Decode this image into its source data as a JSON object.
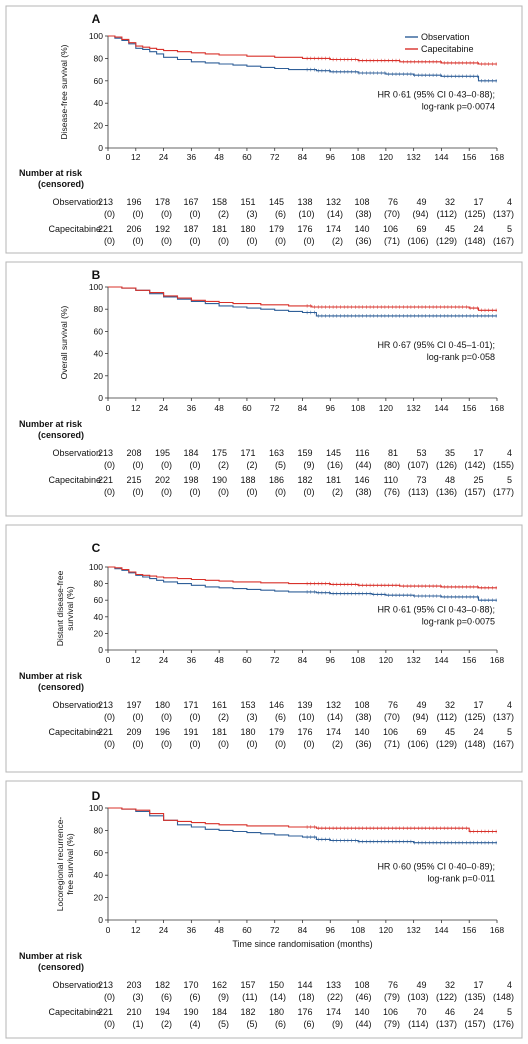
{
  "x_axis_label": "Time since randomisation (months)",
  "risk_heading": [
    "Number at risk",
    "(censored)"
  ],
  "series_colors": {
    "Observation": "#2f5f98",
    "Capecitabine": "#d8312a"
  },
  "chart_data": [
    {
      "type": "line",
      "panel": "A",
      "ylabel": [
        "Disease-free survival (%)"
      ],
      "xlim": [
        0,
        168
      ],
      "ylim": [
        0,
        100
      ],
      "xticks": [
        0,
        12,
        24,
        36,
        48,
        60,
        72,
        84,
        96,
        108,
        120,
        132,
        144,
        156,
        168
      ],
      "yticks": [
        0,
        20,
        40,
        60,
        80,
        100
      ],
      "legend": "top-right",
      "annotation": [
        "HR 0·61 (95% CI 0·43–0·88);",
        "log-rank p=0·0074"
      ],
      "series": [
        {
          "name": "Observation",
          "x": [
            0,
            3,
            6,
            9,
            12,
            15,
            18,
            21,
            24,
            30,
            36,
            42,
            48,
            54,
            60,
            66,
            72,
            78,
            84,
            90,
            96,
            102,
            108,
            114,
            120,
            126,
            132,
            138,
            144,
            150,
            156,
            160,
            168
          ],
          "y": [
            100,
            98,
            96,
            93,
            89,
            88,
            86,
            84,
            81,
            79,
            77,
            76,
            75,
            74,
            73,
            72,
            71,
            70,
            70,
            69,
            68,
            68,
            67,
            67,
            66,
            66,
            65,
            65,
            64,
            64,
            64,
            60,
            60
          ]
        },
        {
          "name": "Capecitabine",
          "x": [
            0,
            3,
            6,
            9,
            12,
            15,
            18,
            21,
            24,
            30,
            36,
            42,
            48,
            54,
            60,
            66,
            72,
            78,
            84,
            90,
            96,
            102,
            108,
            114,
            120,
            126,
            132,
            138,
            144,
            150,
            156,
            160,
            168
          ],
          "y": [
            100,
            99,
            97,
            94,
            91,
            90,
            89,
            88,
            87,
            86,
            85,
            84,
            83,
            83,
            82,
            82,
            81,
            81,
            80,
            80,
            79,
            79,
            78,
            78,
            78,
            77,
            77,
            77,
            76,
            76,
            76,
            75,
            75
          ]
        }
      ],
      "at_risk": {
        "Observation": {
          "n": [
            213,
            196,
            178,
            167,
            158,
            151,
            145,
            138,
            132,
            108,
            76,
            49,
            32,
            17,
            4
          ],
          "censored": [
            0,
            0,
            0,
            0,
            2,
            3,
            6,
            10,
            14,
            38,
            70,
            94,
            112,
            125,
            137
          ]
        },
        "Capecitabine": {
          "n": [
            221,
            206,
            192,
            187,
            181,
            180,
            179,
            176,
            174,
            140,
            106,
            69,
            45,
            24,
            5
          ],
          "censored": [
            0,
            0,
            0,
            0,
            0,
            0,
            0,
            0,
            2,
            36,
            71,
            106,
            129,
            148,
            167
          ]
        }
      }
    },
    {
      "type": "line",
      "panel": "B",
      "ylabel": [
        "Overall survival (%)"
      ],
      "xlim": [
        0,
        168
      ],
      "ylim": [
        0,
        100
      ],
      "xticks": [
        0,
        12,
        24,
        36,
        48,
        60,
        72,
        84,
        96,
        108,
        120,
        132,
        144,
        156,
        168
      ],
      "yticks": [
        0,
        20,
        40,
        60,
        80,
        100
      ],
      "annotation": [
        "HR 0·67 (95% CI 0·45–1·01);",
        "log-rank p=0·058"
      ],
      "series": [
        {
          "name": "Observation",
          "x": [
            0,
            6,
            12,
            18,
            24,
            30,
            36,
            42,
            48,
            54,
            60,
            66,
            72,
            78,
            84,
            88,
            90,
            96,
            108,
            120,
            132,
            144,
            156,
            160,
            168
          ],
          "y": [
            100,
            99,
            97,
            94,
            91,
            89,
            87,
            85,
            83,
            82,
            81,
            80,
            79,
            78,
            77,
            77,
            74,
            74,
            74,
            74,
            74,
            74,
            74,
            74,
            74
          ]
        },
        {
          "name": "Capecitabine",
          "x": [
            0,
            6,
            12,
            18,
            24,
            30,
            36,
            42,
            48,
            54,
            60,
            66,
            72,
            78,
            84,
            88,
            90,
            96,
            108,
            120,
            132,
            144,
            150,
            156,
            160,
            168
          ],
          "y": [
            100,
            99,
            97,
            95,
            92,
            90,
            88,
            87,
            86,
            85,
            85,
            84,
            84,
            83,
            83,
            82,
            82,
            82,
            82,
            82,
            82,
            82,
            82,
            81,
            79,
            79
          ]
        }
      ],
      "at_risk": {
        "Observation": {
          "n": [
            213,
            208,
            195,
            184,
            175,
            171,
            163,
            159,
            145,
            116,
            81,
            53,
            35,
            17,
            4
          ],
          "censored": [
            0,
            0,
            0,
            0,
            2,
            2,
            5,
            9,
            16,
            44,
            80,
            107,
            126,
            142,
            155
          ]
        },
        "Capecitabine": {
          "n": [
            221,
            215,
            202,
            198,
            190,
            188,
            186,
            182,
            181,
            146,
            110,
            73,
            48,
            25,
            5
          ],
          "censored": [
            0,
            0,
            0,
            0,
            0,
            0,
            0,
            0,
            2,
            38,
            76,
            113,
            136,
            157,
            177
          ]
        }
      }
    },
    {
      "type": "line",
      "panel": "C",
      "ylabel": [
        "Distant disease-free",
        "survival (%)"
      ],
      "xlim": [
        0,
        168
      ],
      "ylim": [
        0,
        100
      ],
      "xticks": [
        0,
        12,
        24,
        36,
        48,
        60,
        72,
        84,
        96,
        108,
        120,
        132,
        144,
        156,
        168
      ],
      "yticks": [
        0,
        20,
        40,
        60,
        80,
        100
      ],
      "annotation": [
        "HR 0·61 (95% CI 0·43–0·88);",
        "log-rank p=0·0075"
      ],
      "series": [
        {
          "name": "Observation",
          "x": [
            0,
            3,
            6,
            9,
            12,
            15,
            18,
            21,
            24,
            30,
            36,
            42,
            48,
            54,
            60,
            66,
            72,
            78,
            84,
            90,
            96,
            102,
            108,
            114,
            120,
            126,
            132,
            138,
            144,
            150,
            156,
            160,
            168
          ],
          "y": [
            100,
            98,
            96,
            93,
            90,
            88,
            86,
            84,
            82,
            80,
            78,
            76,
            75,
            74,
            73,
            72,
            71,
            70,
            70,
            69,
            68,
            68,
            68,
            67,
            66,
            66,
            65,
            65,
            64,
            64,
            64,
            60,
            60
          ]
        },
        {
          "name": "Capecitabine",
          "x": [
            0,
            3,
            6,
            9,
            12,
            15,
            18,
            21,
            24,
            30,
            36,
            42,
            48,
            54,
            60,
            66,
            72,
            78,
            84,
            90,
            96,
            102,
            108,
            114,
            120,
            126,
            132,
            138,
            144,
            150,
            156,
            160,
            168
          ],
          "y": [
            100,
            99,
            97,
            94,
            91,
            90,
            89,
            88,
            87,
            86,
            85,
            84,
            83,
            82,
            82,
            81,
            81,
            80,
            80,
            80,
            79,
            79,
            78,
            78,
            78,
            77,
            77,
            77,
            76,
            76,
            76,
            75,
            75
          ]
        }
      ],
      "at_risk": {
        "Observation": {
          "n": [
            213,
            197,
            180,
            171,
            161,
            153,
            146,
            139,
            132,
            108,
            76,
            49,
            32,
            17,
            4
          ],
          "censored": [
            0,
            0,
            0,
            0,
            2,
            3,
            6,
            10,
            14,
            38,
            70,
            94,
            112,
            125,
            137
          ]
        },
        "Capecitabine": {
          "n": [
            221,
            209,
            196,
            191,
            181,
            180,
            179,
            176,
            174,
            140,
            106,
            69,
            45,
            24,
            5
          ],
          "censored": [
            0,
            0,
            0,
            0,
            0,
            0,
            0,
            0,
            2,
            36,
            71,
            106,
            129,
            148,
            167
          ]
        }
      }
    },
    {
      "type": "line",
      "panel": "D",
      "ylabel": [
        "Locoregional recurrence-",
        "free survival (%)"
      ],
      "xlim": [
        0,
        168
      ],
      "ylim": [
        0,
        100
      ],
      "xticks": [
        0,
        12,
        24,
        36,
        48,
        60,
        72,
        84,
        96,
        108,
        120,
        132,
        144,
        156,
        168
      ],
      "yticks": [
        0,
        20,
        40,
        60,
        80,
        100
      ],
      "annotation": [
        "HR 0·60 (95% CI 0·40–0·89);",
        "log-rank p=0·011"
      ],
      "series": [
        {
          "name": "Observation",
          "x": [
            0,
            6,
            12,
            18,
            24,
            30,
            36,
            42,
            48,
            54,
            60,
            66,
            72,
            78,
            84,
            88,
            90,
            96,
            108,
            120,
            132,
            144,
            156,
            168
          ],
          "y": [
            100,
            99,
            97,
            93,
            89,
            85,
            83,
            81,
            80,
            79,
            78,
            77,
            76,
            75,
            74,
            74,
            72,
            71,
            70,
            70,
            69,
            69,
            69,
            69
          ]
        },
        {
          "name": "Capecitabine",
          "x": [
            0,
            6,
            12,
            18,
            24,
            30,
            36,
            42,
            48,
            54,
            60,
            66,
            72,
            78,
            84,
            90,
            96,
            108,
            120,
            132,
            144,
            150,
            156,
            168
          ],
          "y": [
            100,
            99,
            98,
            95,
            89,
            88,
            87,
            86,
            85,
            85,
            84,
            84,
            84,
            83,
            83,
            82,
            82,
            82,
            82,
            82,
            82,
            82,
            79,
            79
          ]
        }
      ],
      "at_risk": {
        "Observation": {
          "n": [
            213,
            203,
            182,
            170,
            162,
            157,
            150,
            144,
            133,
            108,
            76,
            49,
            32,
            17,
            4
          ],
          "censored": [
            0,
            3,
            6,
            6,
            9,
            11,
            14,
            18,
            22,
            46,
            79,
            103,
            122,
            135,
            148
          ]
        },
        "Capecitabine": {
          "n": [
            221,
            210,
            194,
            190,
            184,
            182,
            180,
            176,
            174,
            140,
            106,
            70,
            46,
            24,
            5
          ],
          "censored": [
            0,
            1,
            2,
            4,
            5,
            5,
            6,
            6,
            9,
            44,
            79,
            114,
            137,
            157,
            176
          ]
        }
      }
    }
  ]
}
